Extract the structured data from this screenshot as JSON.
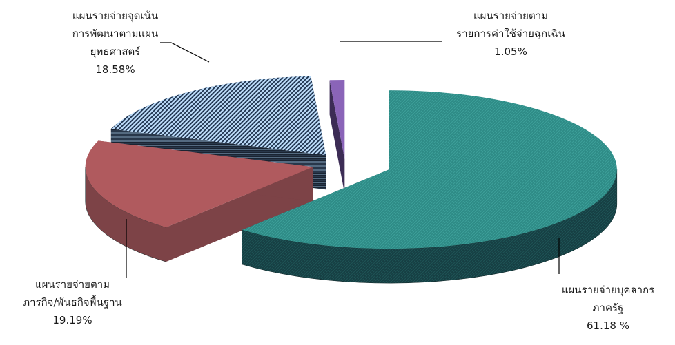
{
  "chart_data": {
    "type": "pie",
    "variant": "3d-exploded",
    "categories": [
      "แผนรายจ่ายบุคลากรภาครัฐ",
      "แผนรายจ่ายตามภารกิจ/พันธกิจพื้นฐาน",
      "แผนรายจ่ายจุดเน้นการพัฒนาตามแผนยุทธศาสตร์",
      "แผนรายจ่ายตามรายการค่าใช้จ่ายฉุกเฉิน"
    ],
    "values": [
      61.18,
      19.19,
      18.58,
      1.05
    ],
    "colors": [
      "#2e8b86",
      "#b05a5e",
      "#9fc6ef",
      "#8a64b8"
    ],
    "labels": [
      {
        "lines": [
          "แผนรายจ่ายบุคลากร",
          "ภาครัฐ"
        ],
        "value_text": "61.18 %"
      },
      {
        "lines": [
          "แผนรายจ่ายตาม",
          "ภารกิจ/พันธกิจพื้นฐาน"
        ],
        "value_text": "19.19%"
      },
      {
        "lines": [
          "แผนรายจ่ายจุดเน้น",
          "การพัฒนาตามแผน",
          "ยุทธศาสตร์"
        ],
        "value_text": "18.58%"
      },
      {
        "lines": [
          "แผนรายจ่ายตาม",
          "รายการค่าใช้จ่ายฉุกเฉิน"
        ],
        "value_text": "1.05%"
      }
    ]
  }
}
